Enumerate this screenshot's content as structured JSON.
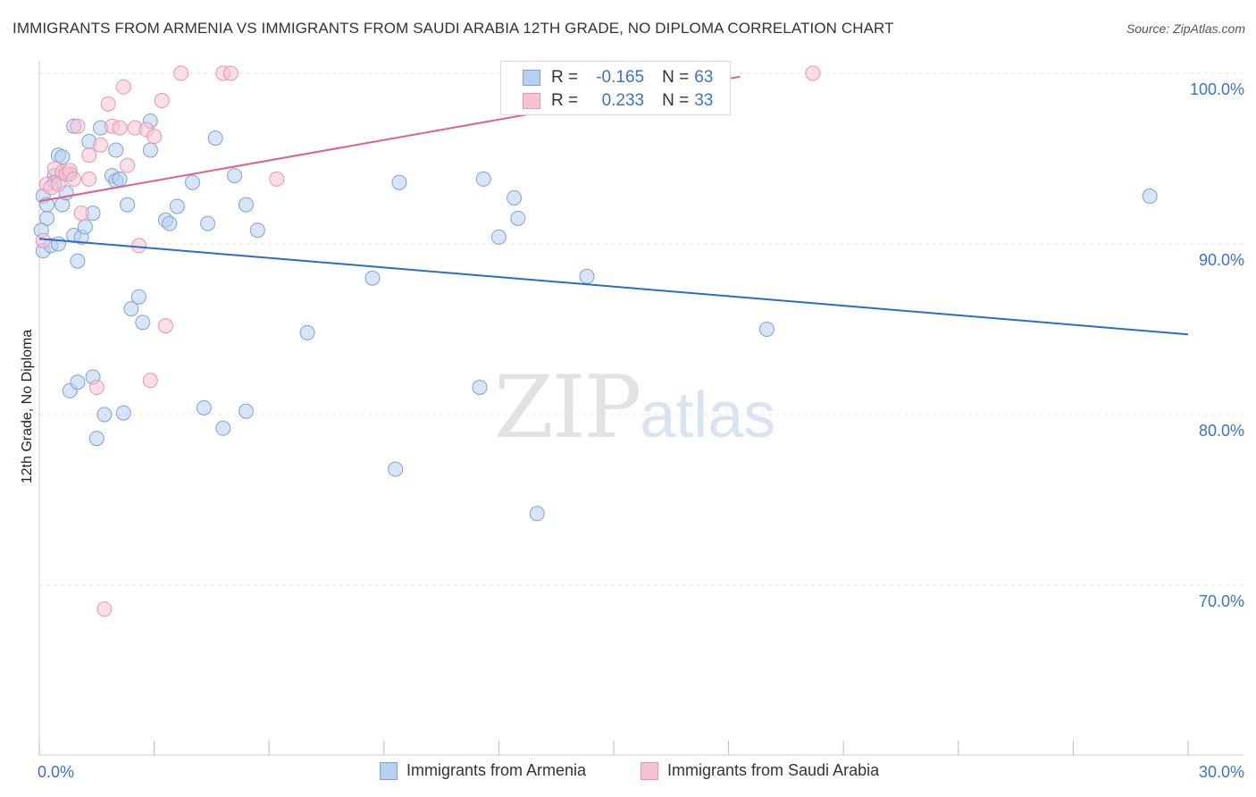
{
  "header": {
    "title": "IMMIGRANTS FROM ARMENIA VS IMMIGRANTS FROM SAUDI ARABIA 12TH GRADE, NO DIPLOMA CORRELATION CHART",
    "source": "Source: ZipAtlas.com"
  },
  "watermark": {
    "zip": "ZIP",
    "atlas": "atlas"
  },
  "legend": {
    "rows": [
      {
        "r_label": "R =",
        "r_value": "-0.165",
        "n_label": "N =",
        "n_value": "63"
      },
      {
        "r_label": "R =",
        "r_value": "0.233",
        "n_label": "N =",
        "n_value": "33"
      }
    ]
  },
  "bottom_legend": [
    "Immigrants from Armenia",
    "Immigrants from Saudi Arabia"
  ],
  "colors": {
    "blue_fill": "#b8d0f0",
    "blue_stroke": "#7aa3d9",
    "blue_line": "#2a6cc9",
    "pink_fill": "#f7c3d2",
    "pink_stroke": "#e895ae",
    "pink_line": "#e0608a",
    "tick_label": "#3a72c8",
    "grid": "#e3e3e3"
  },
  "chart_data": {
    "type": "scatter",
    "title": "IMMIGRANTS FROM ARMENIA VS IMMIGRANTS FROM SAUDI ARABIA 12TH GRADE, NO DIPLOMA CORRELATION CHART",
    "xlabel": "",
    "ylabel": "12th Grade, No Diploma",
    "xlim": [
      0,
      30
    ],
    "ylim": [
      60,
      100
    ],
    "x_tick_labels": [
      "0.0%",
      "30.0%"
    ],
    "y_ticks": [
      70,
      80,
      90,
      100
    ],
    "y_tick_labels": [
      "70.0%",
      "80.0%",
      "90.0%",
      "100.0%"
    ],
    "series": [
      {
        "name": "Immigrants from Armenia",
        "color": "#b8d0f0",
        "r": -0.165,
        "n": 63,
        "trend": {
          "x": [
            0,
            30
          ],
          "y": [
            90.3,
            84.7
          ]
        },
        "points": [
          [
            0.1,
            89.6
          ],
          [
            0.1,
            92.8
          ],
          [
            0.2,
            91.5
          ],
          [
            0.2,
            92.3
          ],
          [
            0.3,
            89.9
          ],
          [
            0.4,
            94.0
          ],
          [
            0.4,
            93.6
          ],
          [
            0.5,
            90.0
          ],
          [
            0.5,
            95.2
          ],
          [
            0.6,
            95.1
          ],
          [
            0.6,
            92.3
          ],
          [
            0.7,
            93.0
          ],
          [
            0.8,
            94.1
          ],
          [
            0.8,
            81.4
          ],
          [
            0.9,
            90.5
          ],
          [
            0.9,
            96.9
          ],
          [
            1.0,
            81.9
          ],
          [
            1.0,
            89.0
          ],
          [
            1.1,
            90.4
          ],
          [
            1.2,
            91.0
          ],
          [
            1.3,
            96.0
          ],
          [
            1.4,
            91.8
          ],
          [
            1.4,
            82.2
          ],
          [
            1.5,
            78.6
          ],
          [
            1.6,
            96.8
          ],
          [
            1.7,
            80.0
          ],
          [
            1.9,
            94.0
          ],
          [
            2.0,
            93.7
          ],
          [
            2.0,
            95.5
          ],
          [
            2.1,
            93.8
          ],
          [
            2.2,
            80.1
          ],
          [
            2.3,
            92.3
          ],
          [
            2.4,
            86.2
          ],
          [
            2.6,
            86.9
          ],
          [
            2.7,
            85.4
          ],
          [
            2.9,
            95.5
          ],
          [
            2.9,
            97.2
          ],
          [
            3.3,
            91.4
          ],
          [
            3.4,
            91.2
          ],
          [
            3.6,
            92.2
          ],
          [
            4.0,
            93.6
          ],
          [
            4.3,
            80.4
          ],
          [
            4.4,
            91.2
          ],
          [
            4.6,
            96.2
          ],
          [
            4.8,
            79.2
          ],
          [
            5.1,
            94.0
          ],
          [
            5.4,
            80.2
          ],
          [
            5.4,
            92.3
          ],
          [
            5.7,
            90.8
          ],
          [
            7.0,
            84.8
          ],
          [
            8.7,
            88.0
          ],
          [
            9.3,
            76.8
          ],
          [
            9.4,
            93.6
          ],
          [
            11.5,
            81.6
          ],
          [
            11.6,
            93.8
          ],
          [
            12.0,
            90.4
          ],
          [
            12.4,
            92.7
          ],
          [
            12.5,
            91.5
          ],
          [
            13.0,
            74.2
          ],
          [
            14.3,
            88.1
          ],
          [
            19.0,
            85.0
          ],
          [
            29.0,
            92.8
          ],
          [
            0.05,
            90.8
          ]
        ]
      },
      {
        "name": "Immigrants from Saudi Arabia",
        "color": "#f7c3d2",
        "r": 0.233,
        "n": 33,
        "trend": {
          "x": [
            0,
            18.3
          ],
          "y": [
            92.5,
            99.8
          ]
        },
        "points": [
          [
            0.1,
            90.2
          ],
          [
            0.2,
            93.5
          ],
          [
            0.3,
            93.3
          ],
          [
            0.4,
            94.4
          ],
          [
            0.5,
            93.5
          ],
          [
            0.6,
            94.2
          ],
          [
            0.7,
            94.1
          ],
          [
            0.8,
            94.3
          ],
          [
            0.9,
            93.8
          ],
          [
            1.0,
            96.9
          ],
          [
            1.1,
            91.8
          ],
          [
            1.3,
            93.8
          ],
          [
            1.3,
            95.2
          ],
          [
            1.5,
            81.6
          ],
          [
            1.6,
            95.8
          ],
          [
            1.7,
            68.6
          ],
          [
            1.8,
            98.2
          ],
          [
            1.9,
            96.9
          ],
          [
            2.1,
            96.8
          ],
          [
            2.2,
            99.2
          ],
          [
            2.3,
            94.6
          ],
          [
            2.5,
            96.8
          ],
          [
            2.6,
            89.9
          ],
          [
            2.8,
            96.7
          ],
          [
            2.9,
            82.0
          ],
          [
            3.0,
            96.3
          ],
          [
            3.2,
            98.4
          ],
          [
            3.3,
            85.2
          ],
          [
            3.7,
            100.0
          ],
          [
            4.8,
            100.0
          ],
          [
            5.0,
            100.0
          ],
          [
            6.2,
            93.8
          ],
          [
            20.2,
            100.0
          ]
        ]
      }
    ]
  }
}
